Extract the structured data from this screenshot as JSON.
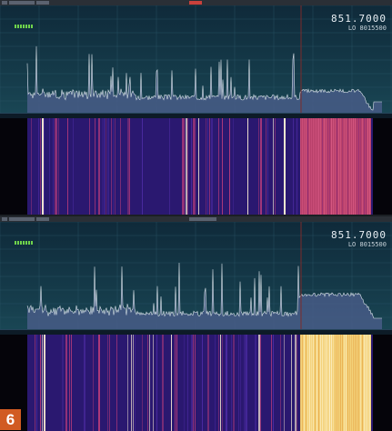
{
  "screens": [
    {
      "window_title": "",
      "frequency": "851.7000",
      "lo_label": "LO",
      "lo_value": "8015500",
      "marker_label": "",
      "spectrum_note": "",
      "waterfall_hot_band": "magenta"
    },
    {
      "window_title": "",
      "frequency": "851.7000",
      "lo_label": "LO",
      "lo_value": "8015500",
      "marker_label": "",
      "spectrum_note": "",
      "waterfall_hot_band": "yellow"
    }
  ],
  "figure_number": "6",
  "colors": {
    "spectrum_bg": "#163d4c",
    "trace": "#dbe4ea",
    "waterfall_bg": "#201060",
    "badge": "#d15b22",
    "level_meter": "#6fd34b"
  }
}
